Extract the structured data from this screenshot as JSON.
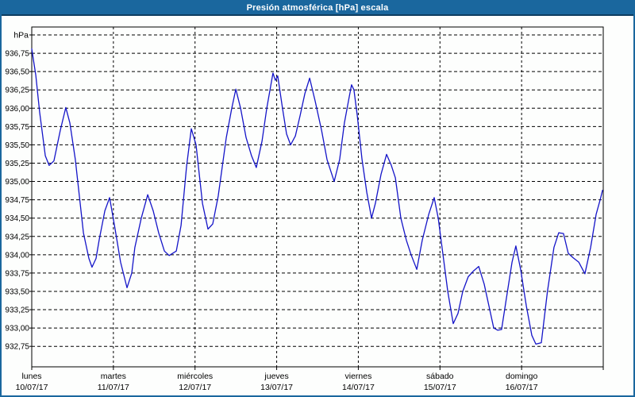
{
  "window": {
    "title": "Presión atmosférica [hPa] escala"
  },
  "colors": {
    "titlebar_bg": "#1a679e",
    "titlebar_edge": "#0d3d60",
    "window_border": "#1a679e",
    "background": "#fdfefd",
    "grid": "#000000",
    "axis": "#000000",
    "line": "#1414c8",
    "title_text": "#ffffff",
    "label_text": "#000000"
  },
  "chart_data": {
    "type": "line",
    "title": "Presión atmosférica [hPa] escala",
    "ylabel": "hPa",
    "grid": "dashed",
    "legend": "none",
    "y_axis": {
      "unit_label": "hPa",
      "top_gridline_value": 937.0,
      "step": 0.25,
      "ylim": [
        932.47,
        937.11
      ],
      "tick_labels": [
        "936,75",
        "936,50",
        "936,25",
        "936,00",
        "935,75",
        "935,50",
        "935,25",
        "935,00",
        "934,75",
        "934,50",
        "934,25",
        "934,00",
        "933,75",
        "933,50",
        "933,25",
        "933,00",
        "932,75"
      ],
      "tick_values": [
        936.75,
        936.5,
        936.25,
        936.0,
        935.75,
        935.5,
        935.25,
        935.0,
        934.75,
        934.5,
        934.25,
        934.0,
        933.75,
        933.5,
        933.25,
        933.0,
        932.75
      ]
    },
    "x_axis": {
      "hours_total": 168,
      "days": [
        {
          "name": "lunes",
          "date": "10/07/17"
        },
        {
          "name": "martes",
          "date": "11/07/17"
        },
        {
          "name": "miércoles",
          "date": "12/07/17"
        },
        {
          "name": "jueves",
          "date": "13/07/17"
        },
        {
          "name": "viernes",
          "date": "14/07/17"
        },
        {
          "name": "sábado",
          "date": "15/07/17"
        },
        {
          "name": "domingo",
          "date": "16/07/17"
        }
      ]
    },
    "series": [
      {
        "name": "Presión atmosférica",
        "unit": "hPa",
        "color": "#1414c8",
        "points_hours_hpa": [
          [
            0.0,
            936.81
          ],
          [
            1.2,
            936.45
          ],
          [
            2.3,
            935.95
          ],
          [
            4.0,
            935.35
          ],
          [
            5.1,
            935.22
          ],
          [
            6.5,
            935.28
          ],
          [
            8.4,
            935.7
          ],
          [
            10.0,
            936.01
          ],
          [
            11.2,
            935.8
          ],
          [
            12.8,
            935.3
          ],
          [
            15.2,
            934.3
          ],
          [
            16.8,
            933.95
          ],
          [
            17.7,
            933.83
          ],
          [
            18.9,
            933.95
          ],
          [
            19.8,
            934.2
          ],
          [
            21.5,
            934.6
          ],
          [
            22.9,
            934.78
          ],
          [
            24.5,
            934.35
          ],
          [
            26.1,
            933.9
          ],
          [
            28.0,
            933.55
          ],
          [
            29.4,
            933.75
          ],
          [
            30.3,
            934.1
          ],
          [
            32.2,
            934.5
          ],
          [
            34.1,
            934.82
          ],
          [
            35.7,
            934.6
          ],
          [
            37.3,
            934.3
          ],
          [
            39.0,
            934.05
          ],
          [
            40.4,
            933.99
          ],
          [
            42.5,
            934.05
          ],
          [
            43.9,
            934.4
          ],
          [
            45.5,
            935.2
          ],
          [
            46.9,
            935.72
          ],
          [
            48.3,
            935.5
          ],
          [
            49.0,
            935.2
          ],
          [
            50.2,
            934.7
          ],
          [
            51.8,
            934.35
          ],
          [
            53.2,
            934.42
          ],
          [
            54.8,
            934.8
          ],
          [
            57.2,
            935.6
          ],
          [
            58.8,
            936.0
          ],
          [
            60.0,
            936.26
          ],
          [
            61.4,
            936.0
          ],
          [
            63.0,
            935.6
          ],
          [
            64.6,
            935.35
          ],
          [
            66.0,
            935.19
          ],
          [
            67.7,
            935.55
          ],
          [
            69.1,
            936.0
          ],
          [
            70.9,
            936.48
          ],
          [
            71.6,
            936.38
          ],
          [
            72.3,
            936.44
          ],
          [
            73.7,
            936.0
          ],
          [
            74.9,
            935.65
          ],
          [
            76.1,
            935.5
          ],
          [
            77.5,
            935.62
          ],
          [
            78.9,
            935.9
          ],
          [
            80.3,
            936.2
          ],
          [
            81.7,
            936.41
          ],
          [
            83.3,
            936.1
          ],
          [
            85.2,
            935.7
          ],
          [
            86.8,
            935.3
          ],
          [
            88.9,
            935.0
          ],
          [
            90.5,
            935.3
          ],
          [
            91.9,
            935.8
          ],
          [
            93.3,
            936.15
          ],
          [
            94.0,
            936.32
          ],
          [
            94.7,
            936.25
          ],
          [
            95.7,
            935.9
          ],
          [
            97.1,
            935.3
          ],
          [
            98.5,
            934.85
          ],
          [
            99.9,
            934.5
          ],
          [
            101.0,
            934.7
          ],
          [
            102.7,
            935.1
          ],
          [
            104.3,
            935.37
          ],
          [
            105.7,
            935.22
          ],
          [
            106.9,
            935.05
          ],
          [
            108.5,
            934.5
          ],
          [
            110.1,
            934.2
          ],
          [
            111.5,
            934.0
          ],
          [
            113.2,
            933.8
          ],
          [
            114.8,
            934.2
          ],
          [
            116.7,
            934.55
          ],
          [
            118.3,
            934.78
          ],
          [
            119.5,
            934.5
          ],
          [
            120.9,
            934.0
          ],
          [
            122.3,
            933.5
          ],
          [
            123.9,
            933.06
          ],
          [
            125.3,
            933.2
          ],
          [
            126.7,
            933.5
          ],
          [
            128.3,
            933.7
          ],
          [
            129.9,
            933.78
          ],
          [
            131.4,
            933.84
          ],
          [
            133.0,
            933.6
          ],
          [
            134.4,
            933.3
          ],
          [
            135.8,
            933.0
          ],
          [
            137.0,
            932.97
          ],
          [
            138.1,
            932.98
          ],
          [
            139.5,
            933.4
          ],
          [
            141.2,
            933.9
          ],
          [
            142.3,
            934.12
          ],
          [
            143.7,
            933.8
          ],
          [
            145.4,
            933.3
          ],
          [
            147.0,
            932.9
          ],
          [
            148.2,
            932.78
          ],
          [
            149.8,
            932.8
          ],
          [
            151.6,
            933.5
          ],
          [
            153.5,
            934.1
          ],
          [
            154.9,
            934.3
          ],
          [
            156.3,
            934.29
          ],
          [
            157.7,
            934.02
          ],
          [
            159.1,
            933.96
          ],
          [
            160.8,
            933.9
          ],
          [
            162.6,
            933.74
          ],
          [
            164.3,
            934.1
          ],
          [
            165.9,
            934.55
          ],
          [
            167.1,
            934.75
          ],
          [
            167.8,
            934.88
          ]
        ]
      }
    ]
  }
}
